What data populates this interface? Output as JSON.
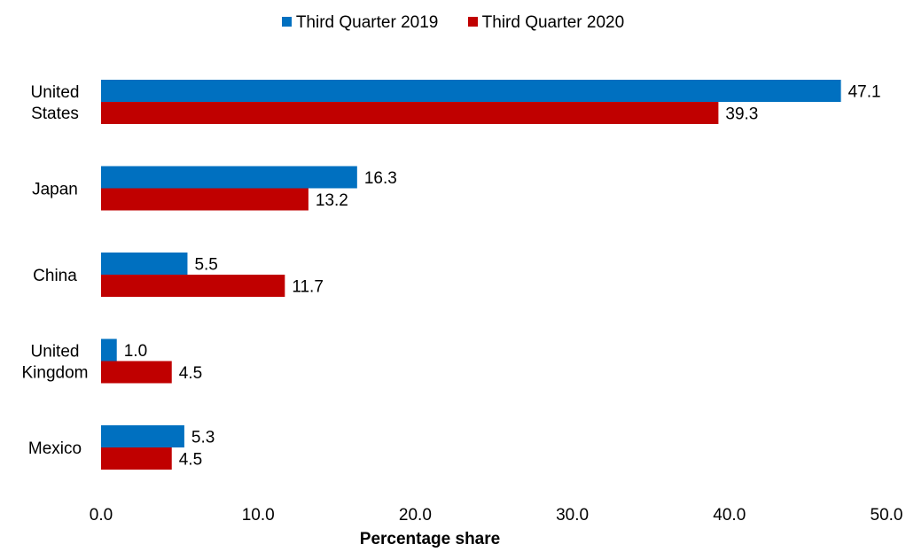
{
  "chart_data": {
    "type": "bar",
    "orientation": "horizontal",
    "categories": [
      [
        "United",
        "States"
      ],
      [
        "Japan"
      ],
      [
        "China"
      ],
      [
        "United",
        "Kingdom"
      ],
      [
        "Mexico"
      ]
    ],
    "series": [
      {
        "name": "Third Quarter 2019",
        "color": "#0070C0",
        "values": [
          47.1,
          16.3,
          5.5,
          1.0,
          5.3
        ],
        "labels": [
          "47.1",
          "16.3",
          "5.5",
          "1.0",
          "5.3"
        ]
      },
      {
        "name": "Third Quarter 2020",
        "color": "#C00000",
        "values": [
          39.3,
          13.2,
          11.7,
          4.5,
          4.5
        ],
        "labels": [
          "39.3",
          "13.2",
          "11.7",
          "4.5",
          "4.5"
        ]
      }
    ],
    "xlabel": "Percentage share",
    "xlim": [
      0,
      50
    ],
    "xticks": [
      "0.0",
      "10.0",
      "20.0",
      "30.0",
      "40.0",
      "50.0"
    ],
    "legend_position": "top",
    "grid": false
  }
}
